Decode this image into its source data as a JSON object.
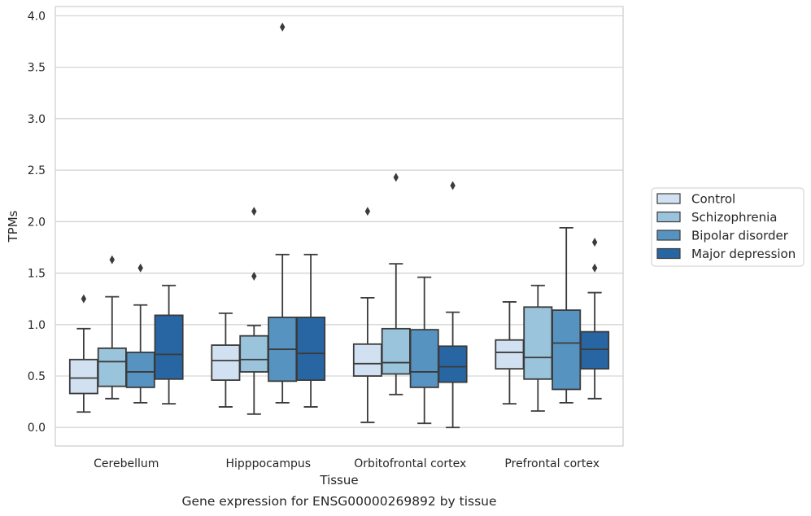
{
  "chart_data": {
    "type": "box",
    "caption": "Gene expression for ENSG00000269892 by tissue",
    "xlabel": "Tissue",
    "ylabel": "TPMs",
    "ylim": [
      -0.18,
      4.09
    ],
    "yticks": [
      0.0,
      0.5,
      1.0,
      1.5,
      2.0,
      2.5,
      3.0,
      3.5,
      4.0
    ],
    "ytick_labels": [
      "0.0",
      "0.5",
      "1.0",
      "1.5",
      "2.0",
      "2.5",
      "3.0",
      "3.5",
      "4.0"
    ],
    "grid": "horizontal",
    "legend_position": "right",
    "categories": [
      "Cerebellum",
      "Hipppocampus",
      "Orbitofrontal cortex",
      "Prefrontal cortex"
    ],
    "series": [
      {
        "name": "Control",
        "color": "#d2e1f1",
        "boxes": [
          {
            "whislo": 0.15,
            "q1": 0.33,
            "med": 0.48,
            "q3": 0.66,
            "whishi": 0.96,
            "fliers": [
              1.25
            ]
          },
          {
            "whislo": 0.2,
            "q1": 0.46,
            "med": 0.65,
            "q3": 0.8,
            "whishi": 1.11,
            "fliers": []
          },
          {
            "whislo": 0.05,
            "q1": 0.5,
            "med": 0.62,
            "q3": 0.81,
            "whishi": 1.26,
            "fliers": [
              2.1
            ]
          },
          {
            "whislo": 0.23,
            "q1": 0.57,
            "med": 0.73,
            "q3": 0.85,
            "whishi": 1.22,
            "fliers": []
          }
        ]
      },
      {
        "name": "Schizophrenia",
        "color": "#9ac3dc",
        "boxes": [
          {
            "whislo": 0.28,
            "q1": 0.4,
            "med": 0.64,
            "q3": 0.77,
            "whishi": 1.27,
            "fliers": [
              1.63
            ]
          },
          {
            "whislo": 0.13,
            "q1": 0.54,
            "med": 0.66,
            "q3": 0.89,
            "whishi": 0.99,
            "fliers": [
              1.47,
              2.1
            ]
          },
          {
            "whislo": 0.32,
            "q1": 0.52,
            "med": 0.63,
            "q3": 0.96,
            "whishi": 1.59,
            "fliers": [
              2.43
            ]
          },
          {
            "whislo": 0.16,
            "q1": 0.47,
            "med": 0.68,
            "q3": 1.17,
            "whishi": 1.38,
            "fliers": []
          }
        ]
      },
      {
        "name": "Bipolar disorder",
        "color": "#5693c1",
        "boxes": [
          {
            "whislo": 0.24,
            "q1": 0.39,
            "med": 0.54,
            "q3": 0.73,
            "whishi": 1.19,
            "fliers": [
              1.55
            ]
          },
          {
            "whislo": 0.24,
            "q1": 0.45,
            "med": 0.76,
            "q3": 1.07,
            "whishi": 1.68,
            "fliers": [
              3.89
            ]
          },
          {
            "whislo": 0.04,
            "q1": 0.39,
            "med": 0.54,
            "q3": 0.95,
            "whishi": 1.46,
            "fliers": []
          },
          {
            "whislo": 0.24,
            "q1": 0.37,
            "med": 0.82,
            "q3": 1.14,
            "whishi": 1.94,
            "fliers": []
          }
        ]
      },
      {
        "name": "Major depression",
        "color": "#2866a3",
        "boxes": [
          {
            "whislo": 0.23,
            "q1": 0.47,
            "med": 0.71,
            "q3": 1.09,
            "whishi": 1.38,
            "fliers": []
          },
          {
            "whislo": 0.2,
            "q1": 0.46,
            "med": 0.72,
            "q3": 1.07,
            "whishi": 1.68,
            "fliers": []
          },
          {
            "whislo": 0.0,
            "q1": 0.44,
            "med": 0.59,
            "q3": 0.79,
            "whishi": 1.12,
            "fliers": [
              2.35
            ]
          },
          {
            "whislo": 0.28,
            "q1": 0.57,
            "med": 0.76,
            "q3": 0.93,
            "whishi": 1.31,
            "fliers": [
              1.55,
              1.8
            ]
          }
        ]
      }
    ]
  }
}
